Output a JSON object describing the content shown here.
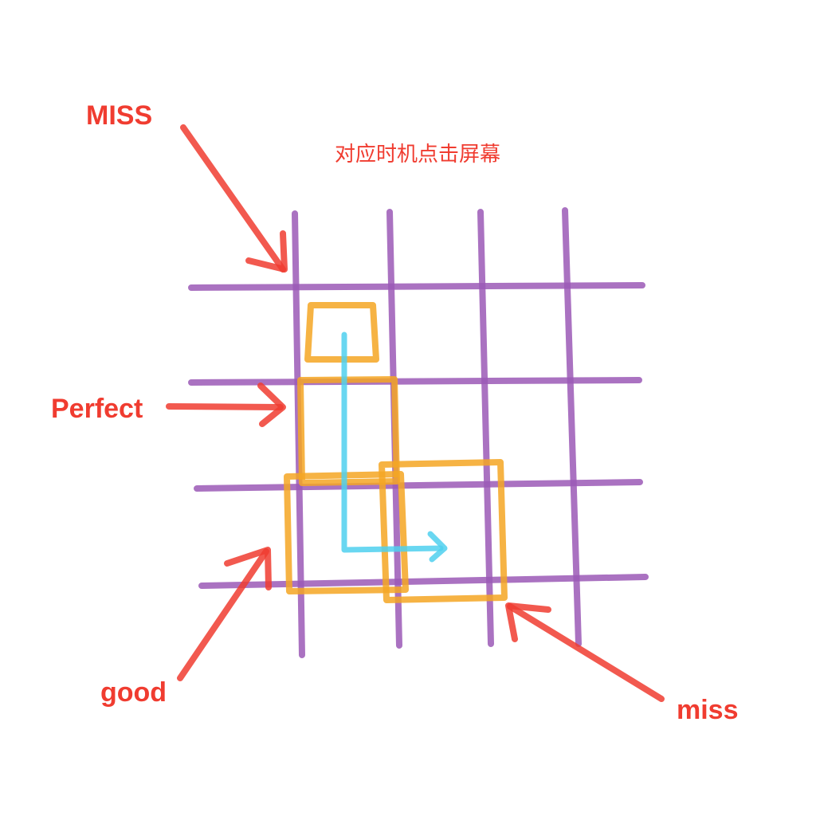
{
  "title": "对应时机点击屏幕",
  "labels": {
    "miss_top": "MISS",
    "perfect": "Perfect",
    "good": "good",
    "miss_bottom": "miss"
  },
  "colors": {
    "grid": "#9b59b6",
    "box": "#f5a623",
    "path": "#4fd0ee",
    "annotation": "#f03c30",
    "background": "#ffffff"
  }
}
